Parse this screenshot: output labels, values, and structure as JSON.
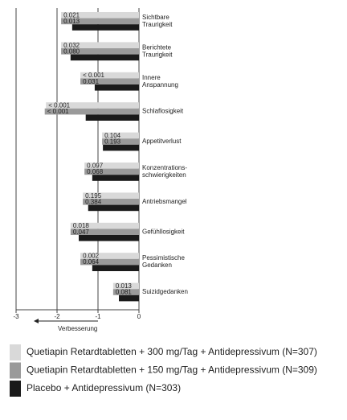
{
  "chart_data": {
    "type": "bar",
    "orientation": "horizontal",
    "categories": [
      [
        "Sichtbare",
        "Traurigkeit"
      ],
      [
        "Berichtete",
        "Traurigkeit"
      ],
      [
        "Innere",
        "Anspannung"
      ],
      [
        "Schlaflosigkeit"
      ],
      [
        "Appetitverlust"
      ],
      [
        "Konzentrations-",
        "schwierigkeiten"
      ],
      [
        "Antriebsmangel"
      ],
      [
        "Gefühllosigkeit"
      ],
      [
        "Pessimistische",
        "Gedanken"
      ],
      [
        "Suizidgedanken"
      ]
    ],
    "series": [
      {
        "name": "Quetiapin Retardtabletten + 300 mg/Tag + Antidepressivum (N=307)",
        "color": "#d9d9d9",
        "values": [
          -1.9,
          -1.9,
          -1.43,
          -2.27,
          -0.9,
          -1.33,
          -1.37,
          -1.67,
          -1.43,
          -0.63
        ],
        "p_values": [
          "0.021",
          "0.032",
          "< 0.001",
          "< 0.001",
          "0.104",
          "0.097",
          "0.195",
          "0.018",
          "0.002",
          "0.013"
        ]
      },
      {
        "name": "Quetiapin Retardtabletten + 150 mg/Tag + Antidepressivum (N=309)",
        "color": "#9a9a9a",
        "values": [
          -1.9,
          -1.9,
          -1.43,
          -2.3,
          -0.9,
          -1.33,
          -1.37,
          -1.67,
          -1.43,
          -0.63
        ],
        "p_values": [
          "0.013",
          "0.080",
          "0.031",
          "< 0.001",
          "0.193",
          "0.068",
          "0.384",
          "0.047",
          "0.064",
          "0.081"
        ]
      },
      {
        "name": "Placebo + Antidepressivum (N=303)",
        "color": "#1a1a1a",
        "values": [
          -1.63,
          -1.67,
          -1.08,
          -1.3,
          -0.88,
          -1.14,
          -1.24,
          -1.47,
          -1.14,
          -0.49
        ]
      }
    ],
    "xlim": [
      -3,
      0
    ],
    "xticks": [
      -3,
      -2,
      -1,
      0
    ],
    "grid": true,
    "x_annotation": "Verbesserung"
  }
}
